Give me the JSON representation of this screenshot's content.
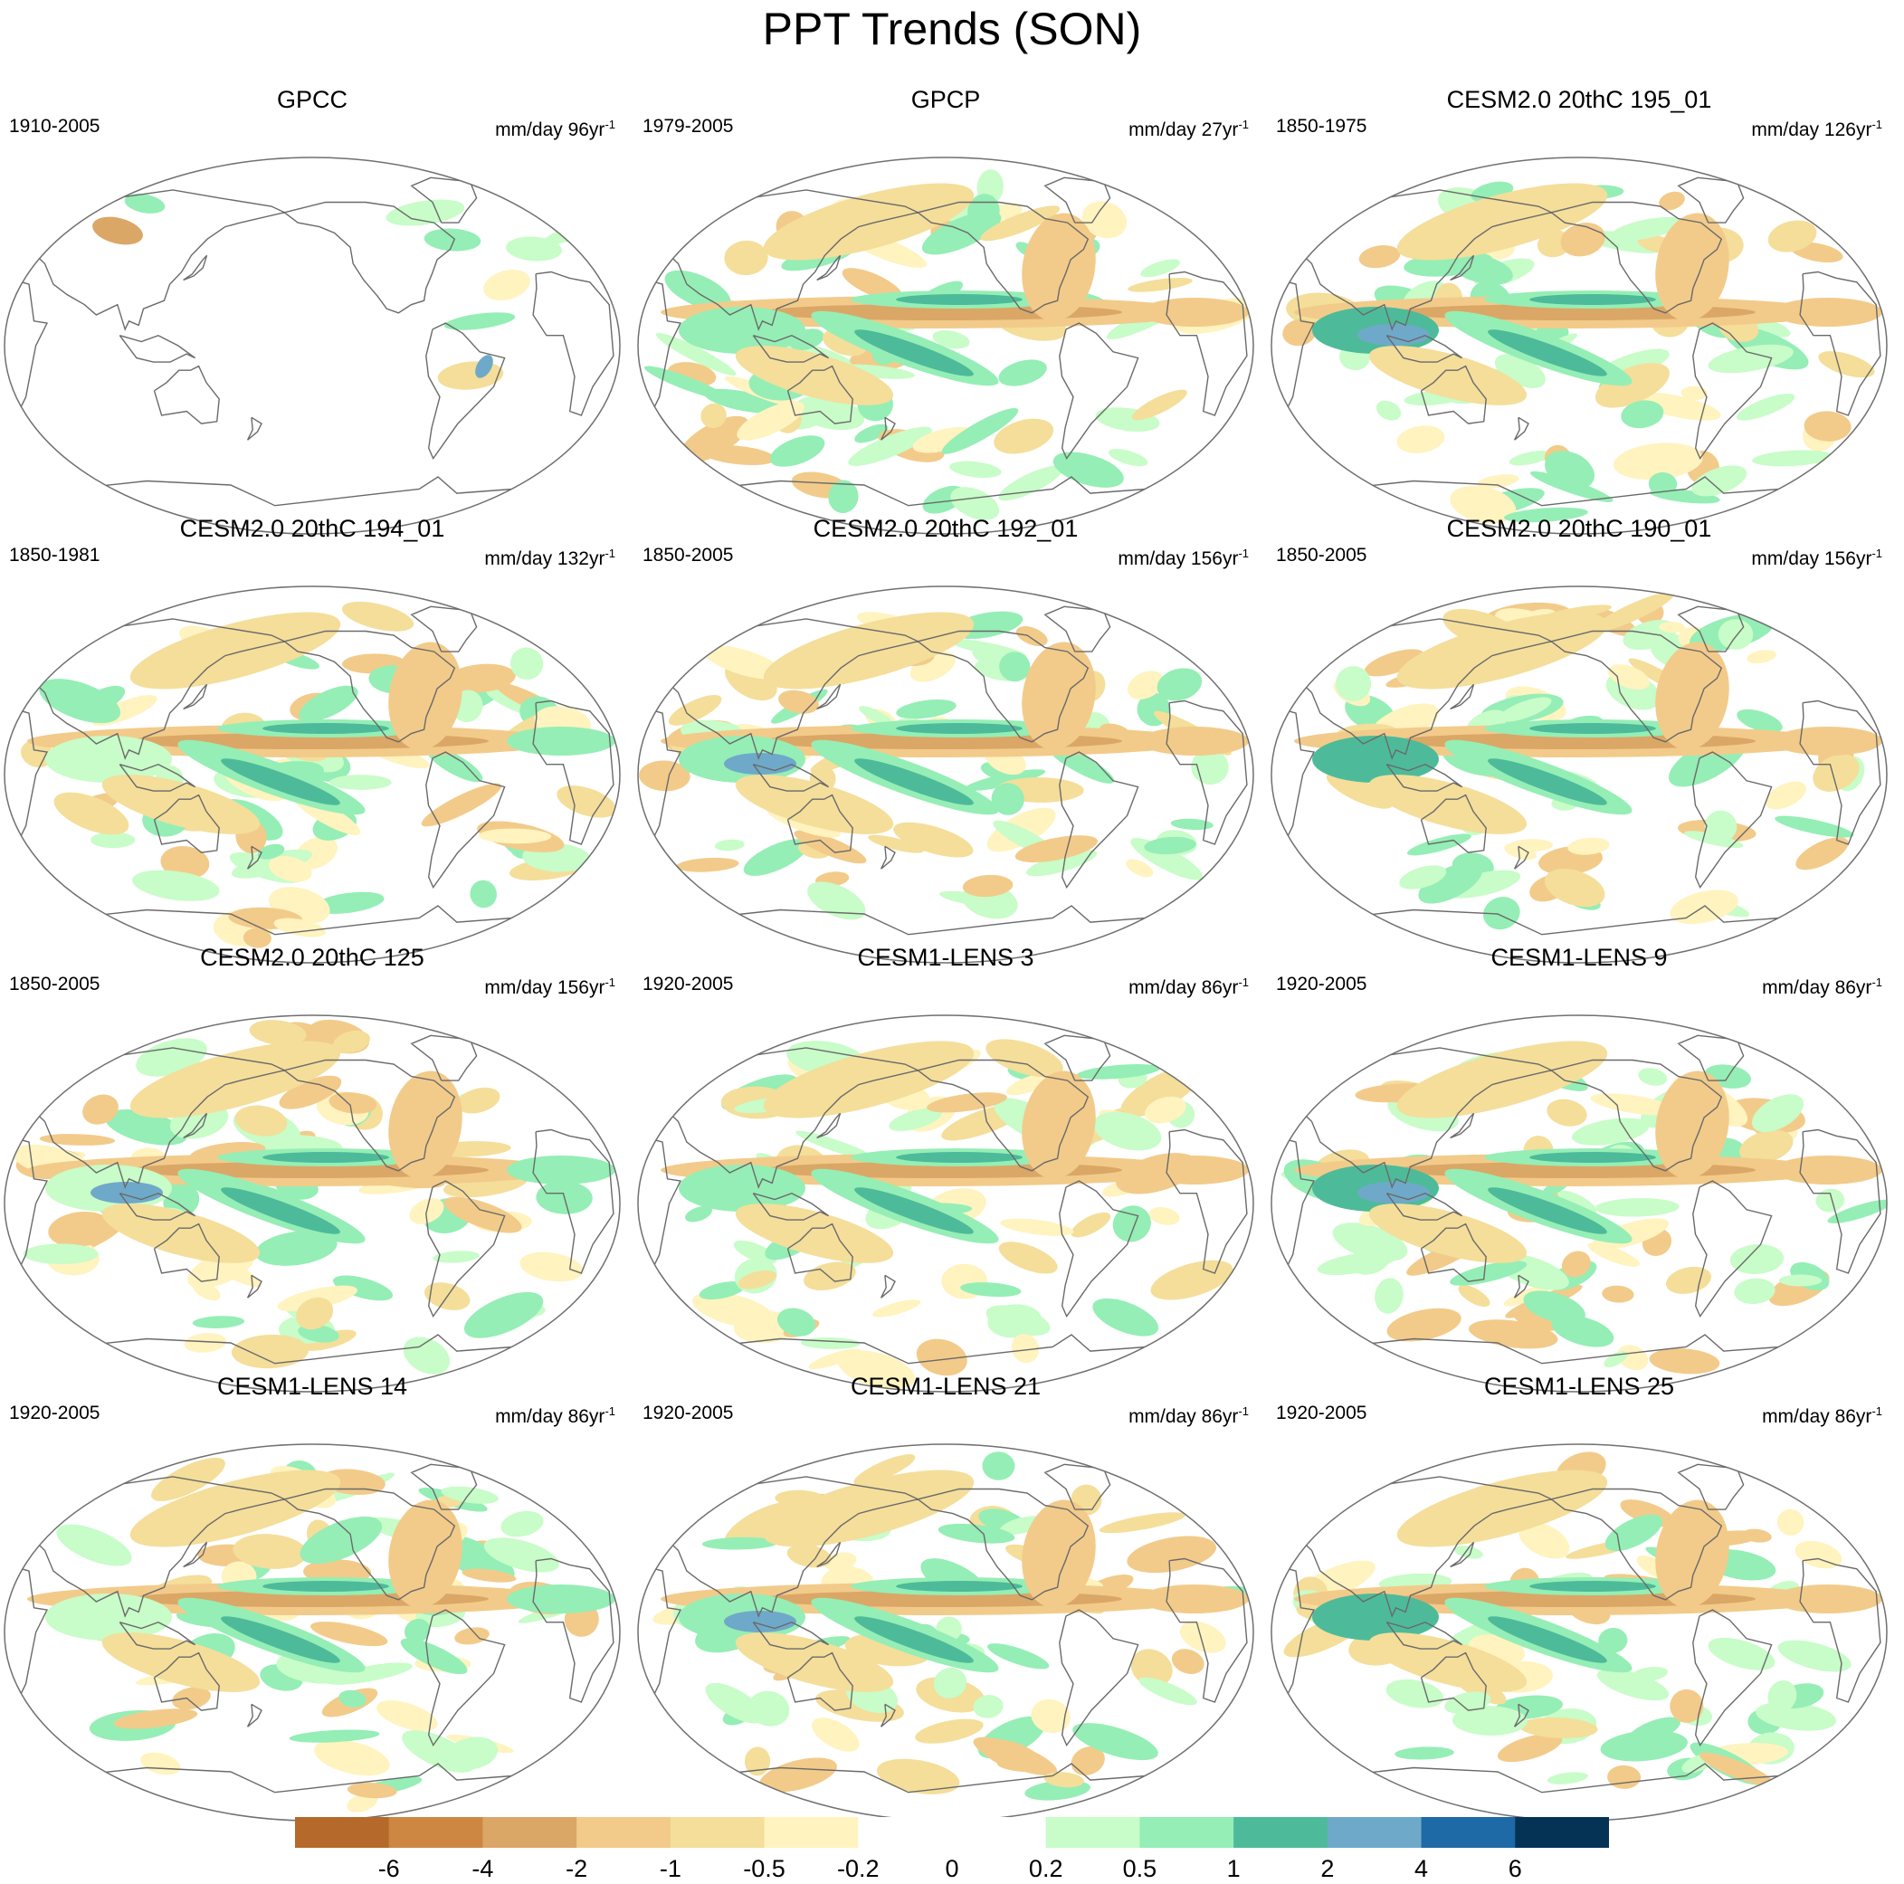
{
  "title": "PPT Trends (SON)",
  "panels": [
    {
      "name": "GPCC",
      "years": "1910-2005",
      "units": "mm/day 96yr",
      "pattern": "sparse"
    },
    {
      "name": "GPCP",
      "years": "1979-2005",
      "units": "mm/day 27yr",
      "pattern": "mixed"
    },
    {
      "name": "CESM2.0 20thC 195_01",
      "years": "1850-1975",
      "units": "mm/day 126yr",
      "pattern": "model"
    },
    {
      "name": "CESM2.0 20thC 194_01",
      "years": "1850-1981",
      "units": "mm/day 132yr",
      "pattern": "model"
    },
    {
      "name": "CESM2.0 20thC 192_01",
      "years": "1850-2005",
      "units": "mm/day 156yr",
      "pattern": "model"
    },
    {
      "name": "CESM2.0 20thC 190_01",
      "years": "1850-2005",
      "units": "mm/day 156yr",
      "pattern": "model"
    },
    {
      "name": "CESM2.0 20thC 125",
      "years": "1850-2005",
      "units": "mm/day 156yr",
      "pattern": "model"
    },
    {
      "name": "CESM1-LENS 3",
      "years": "1920-2005",
      "units": "mm/day 86yr",
      "pattern": "model"
    },
    {
      "name": "CESM1-LENS 9",
      "years": "1920-2005",
      "units": "mm/day 86yr",
      "pattern": "model"
    },
    {
      "name": "CESM1-LENS 14",
      "years": "1920-2005",
      "units": "mm/day 86yr",
      "pattern": "model"
    },
    {
      "name": "CESM1-LENS 21",
      "years": "1920-2005",
      "units": "mm/day 86yr",
      "pattern": "model"
    },
    {
      "name": "CESM1-LENS 25",
      "years": "1920-2005",
      "units": "mm/day 86yr",
      "pattern": "model"
    }
  ],
  "units_superscript": "-1",
  "colorbar": {
    "colors": [
      "#b5692a",
      "#cd8743",
      "#dba766",
      "#f2cb8a",
      "#f4de9a",
      "#fff3bf",
      "#ffffff",
      "#ffffff",
      "#c8fcc8",
      "#95eeb5",
      "#4dbb99",
      "#6fa9c9",
      "#1d6aa6",
      "#053356"
    ],
    "labels": [
      "-6",
      "-4",
      "-2",
      "-1",
      "-0.5",
      "-0.2",
      "0",
      "0.2",
      "0.5",
      "1",
      "2",
      "4",
      "6"
    ]
  },
  "colors": {
    "coast": "#6a6a6a",
    "outline": "#707070"
  }
}
